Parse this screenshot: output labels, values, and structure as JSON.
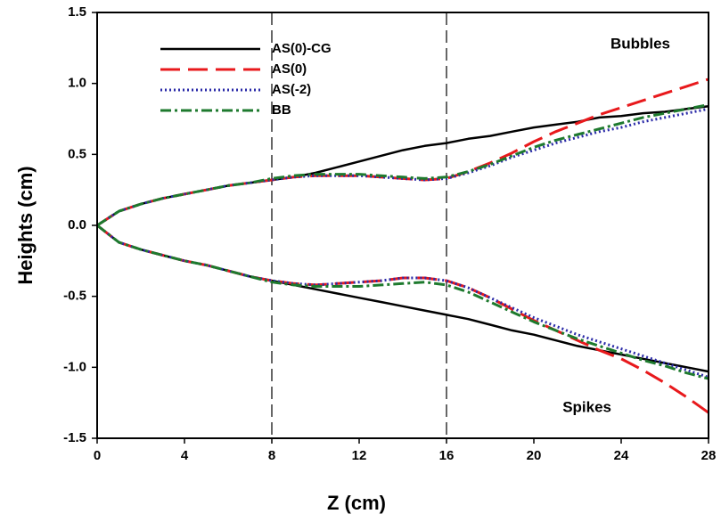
{
  "chart_data": {
    "type": "line",
    "xlabel": "Z (cm)",
    "ylabel": "Heights (cm)",
    "annotations": [
      "Bubbles",
      "Spikes"
    ],
    "vlines": [
      8,
      16
    ],
    "xlim": [
      0,
      28
    ],
    "xticks": [
      0,
      4,
      8,
      12,
      16,
      20,
      24,
      28
    ],
    "ylim": [
      -1.5,
      1.5
    ],
    "yticks": [
      -1.5,
      {
        "value": -1,
        "label": "-1.0"
      },
      -0.5,
      {
        "value": 0,
        "label": "0.0"
      },
      0.5,
      {
        "value": 1,
        "label": "1.0"
      },
      1.5
    ],
    "legend": "upper-left",
    "x": [
      0,
      1,
      2,
      3,
      4,
      5,
      6,
      7,
      8,
      9,
      10,
      11,
      12,
      13,
      14,
      15,
      16,
      17,
      18,
      19,
      20,
      21,
      22,
      23,
      24,
      25,
      26,
      27,
      28
    ],
    "series": [
      {
        "name": "AS(0)-CG",
        "color": "#000000",
        "dash": "solid",
        "values": [
          0,
          0.1,
          0.15,
          0.19,
          0.22,
          0.25,
          0.28,
          0.3,
          0.32,
          0.34,
          0.37,
          0.41,
          0.45,
          0.49,
          0.53,
          0.56,
          0.58,
          0.61,
          0.63,
          0.66,
          0.69,
          0.71,
          0.73,
          0.76,
          0.77,
          0.79,
          0.8,
          0.82,
          0.84
        ],
        "lower_values": [
          0,
          -0.12,
          -0.17,
          -0.21,
          -0.25,
          -0.28,
          -0.32,
          -0.36,
          -0.39,
          -0.42,
          -0.45,
          -0.48,
          -0.51,
          -0.54,
          -0.57,
          -0.6,
          -0.63,
          -0.66,
          -0.7,
          -0.74,
          -0.77,
          -0.81,
          -0.85,
          -0.88,
          -0.91,
          -0.94,
          -0.97,
          -1,
          -1.03
        ]
      },
      {
        "name": "AS(0)",
        "color": "#e8191c",
        "dash": "dashed",
        "values": [
          0,
          0.1,
          0.15,
          0.19,
          0.22,
          0.25,
          0.28,
          0.3,
          0.32,
          0.34,
          0.35,
          0.35,
          0.35,
          0.34,
          0.33,
          0.32,
          0.33,
          0.38,
          0.44,
          0.51,
          0.59,
          0.66,
          0.72,
          0.78,
          0.83,
          0.88,
          0.93,
          0.98,
          1.03
        ],
        "lower_values": [
          0,
          -0.12,
          -0.17,
          -0.21,
          -0.25,
          -0.28,
          -0.32,
          -0.36,
          -0.39,
          -0.41,
          -0.42,
          -0.41,
          -0.4,
          -0.39,
          -0.37,
          -0.37,
          -0.39,
          -0.44,
          -0.51,
          -0.59,
          -0.67,
          -0.74,
          -0.81,
          -0.88,
          -0.94,
          -1.02,
          -1.11,
          -1.21,
          -1.32
        ]
      },
      {
        "name": "AS(-2)",
        "color": "#2b2ba8",
        "dash": "dotted",
        "values": [
          0,
          0.1,
          0.15,
          0.19,
          0.22,
          0.25,
          0.28,
          0.3,
          0.32,
          0.34,
          0.35,
          0.35,
          0.35,
          0.34,
          0.33,
          0.32,
          0.33,
          0.37,
          0.42,
          0.48,
          0.53,
          0.58,
          0.62,
          0.66,
          0.69,
          0.73,
          0.76,
          0.79,
          0.82
        ],
        "lower_values": [
          0,
          -0.12,
          -0.17,
          -0.21,
          -0.25,
          -0.28,
          -0.32,
          -0.36,
          -0.39,
          -0.41,
          -0.42,
          -0.41,
          -0.4,
          -0.39,
          -0.37,
          -0.37,
          -0.39,
          -0.44,
          -0.51,
          -0.58,
          -0.65,
          -0.71,
          -0.77,
          -0.82,
          -0.87,
          -0.92,
          -0.97,
          -1.02,
          -1.07
        ]
      },
      {
        "name": "BB",
        "color": "#1e7a2e",
        "dash": "dashdot",
        "values": [
          0,
          0.1,
          0.15,
          0.19,
          0.22,
          0.25,
          0.28,
          0.3,
          0.33,
          0.35,
          0.36,
          0.36,
          0.36,
          0.35,
          0.34,
          0.33,
          0.34,
          0.38,
          0.43,
          0.49,
          0.55,
          0.6,
          0.64,
          0.68,
          0.72,
          0.76,
          0.79,
          0.82,
          0.85
        ],
        "lower_values": [
          0,
          -0.12,
          -0.17,
          -0.21,
          -0.25,
          -0.28,
          -0.32,
          -0.36,
          -0.4,
          -0.42,
          -0.43,
          -0.43,
          -0.43,
          -0.42,
          -0.41,
          -0.4,
          -0.42,
          -0.47,
          -0.54,
          -0.61,
          -0.68,
          -0.74,
          -0.8,
          -0.85,
          -0.9,
          -0.95,
          -0.99,
          -1.04,
          -1.08
        ]
      }
    ]
  }
}
